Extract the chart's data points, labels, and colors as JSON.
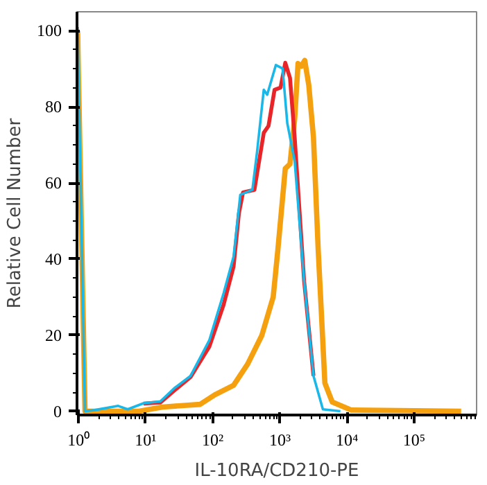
{
  "chart_data": {
    "type": "line",
    "xlabel": "IL-10RA/CD210-PE",
    "ylabel": "Relative Cell Number",
    "log": "x",
    "grid": false,
    "line_style": "solid",
    "marker": "none",
    "xlim": [
      0.95,
      850000
    ],
    "ylim": [
      -1,
      105
    ],
    "xticks": [
      {
        "value": 1,
        "label": "10⁰"
      },
      {
        "value": 10,
        "label": "10¹"
      },
      {
        "value": 100,
        "label": "10²"
      },
      {
        "value": 1000,
        "label": "10³"
      },
      {
        "value": 10000,
        "label": "10⁴"
      },
      {
        "value": 100000,
        "label": "10⁵"
      }
    ],
    "yticks": [
      0,
      20,
      40,
      60,
      80,
      100
    ],
    "series": [
      {
        "color": "#f5a00f",
        "x": [
          0.97,
          1.25,
          3,
          8,
          17.8,
          64.6,
          107,
          204,
          331,
          537,
          794,
          933,
          1202,
          1413,
          1660,
          1862,
          2089,
          2344,
          2692,
          3162,
          3715,
          4677,
          6026,
          11482,
          500000
        ],
        "values": [
          100,
          0,
          0,
          0,
          1.1,
          1.8,
          4.3,
          6.8,
          12.4,
          19.9,
          30,
          42.5,
          63.8,
          65,
          76.9,
          91.4,
          90.7,
          92.2,
          85.7,
          71.9,
          42.5,
          7.4,
          2.4,
          0.3,
          0
        ]
      },
      {
        "color": "#e8262a",
        "x": [
          9.3,
          16.6,
          26.9,
          46.8,
          89,
          145,
          204,
          245,
          282,
          417,
          575,
          676,
          832,
          1023,
          1202,
          1413,
          1660,
          2291,
          3162
        ],
        "values": [
          2.0,
          2.3,
          5.5,
          9,
          17,
          28,
          38,
          52,
          57.5,
          58.2,
          73.2,
          75,
          84.5,
          85.1,
          91.6,
          87.6,
          71.9,
          34.3,
          9.3
        ]
      },
      {
        "color": "#1ab8e8",
        "x": [
          0.97,
          1.25,
          1.74,
          3.9,
          5.4,
          9.3,
          16.6,
          26.9,
          46.8,
          89,
          145,
          204,
          257,
          389,
          457,
          575,
          646,
          871,
          1096,
          1288,
          1660,
          2291,
          3162,
          4365,
          7943
        ],
        "values": [
          101,
          0,
          0.3,
          1.4,
          0.5,
          2.1,
          2.6,
          6.1,
          9.3,
          18.7,
          31,
          40.6,
          56.9,
          58.2,
          68.2,
          84.5,
          83.2,
          91,
          90.1,
          75.7,
          65.7,
          34.3,
          9.3,
          0.5,
          0
        ]
      }
    ]
  }
}
